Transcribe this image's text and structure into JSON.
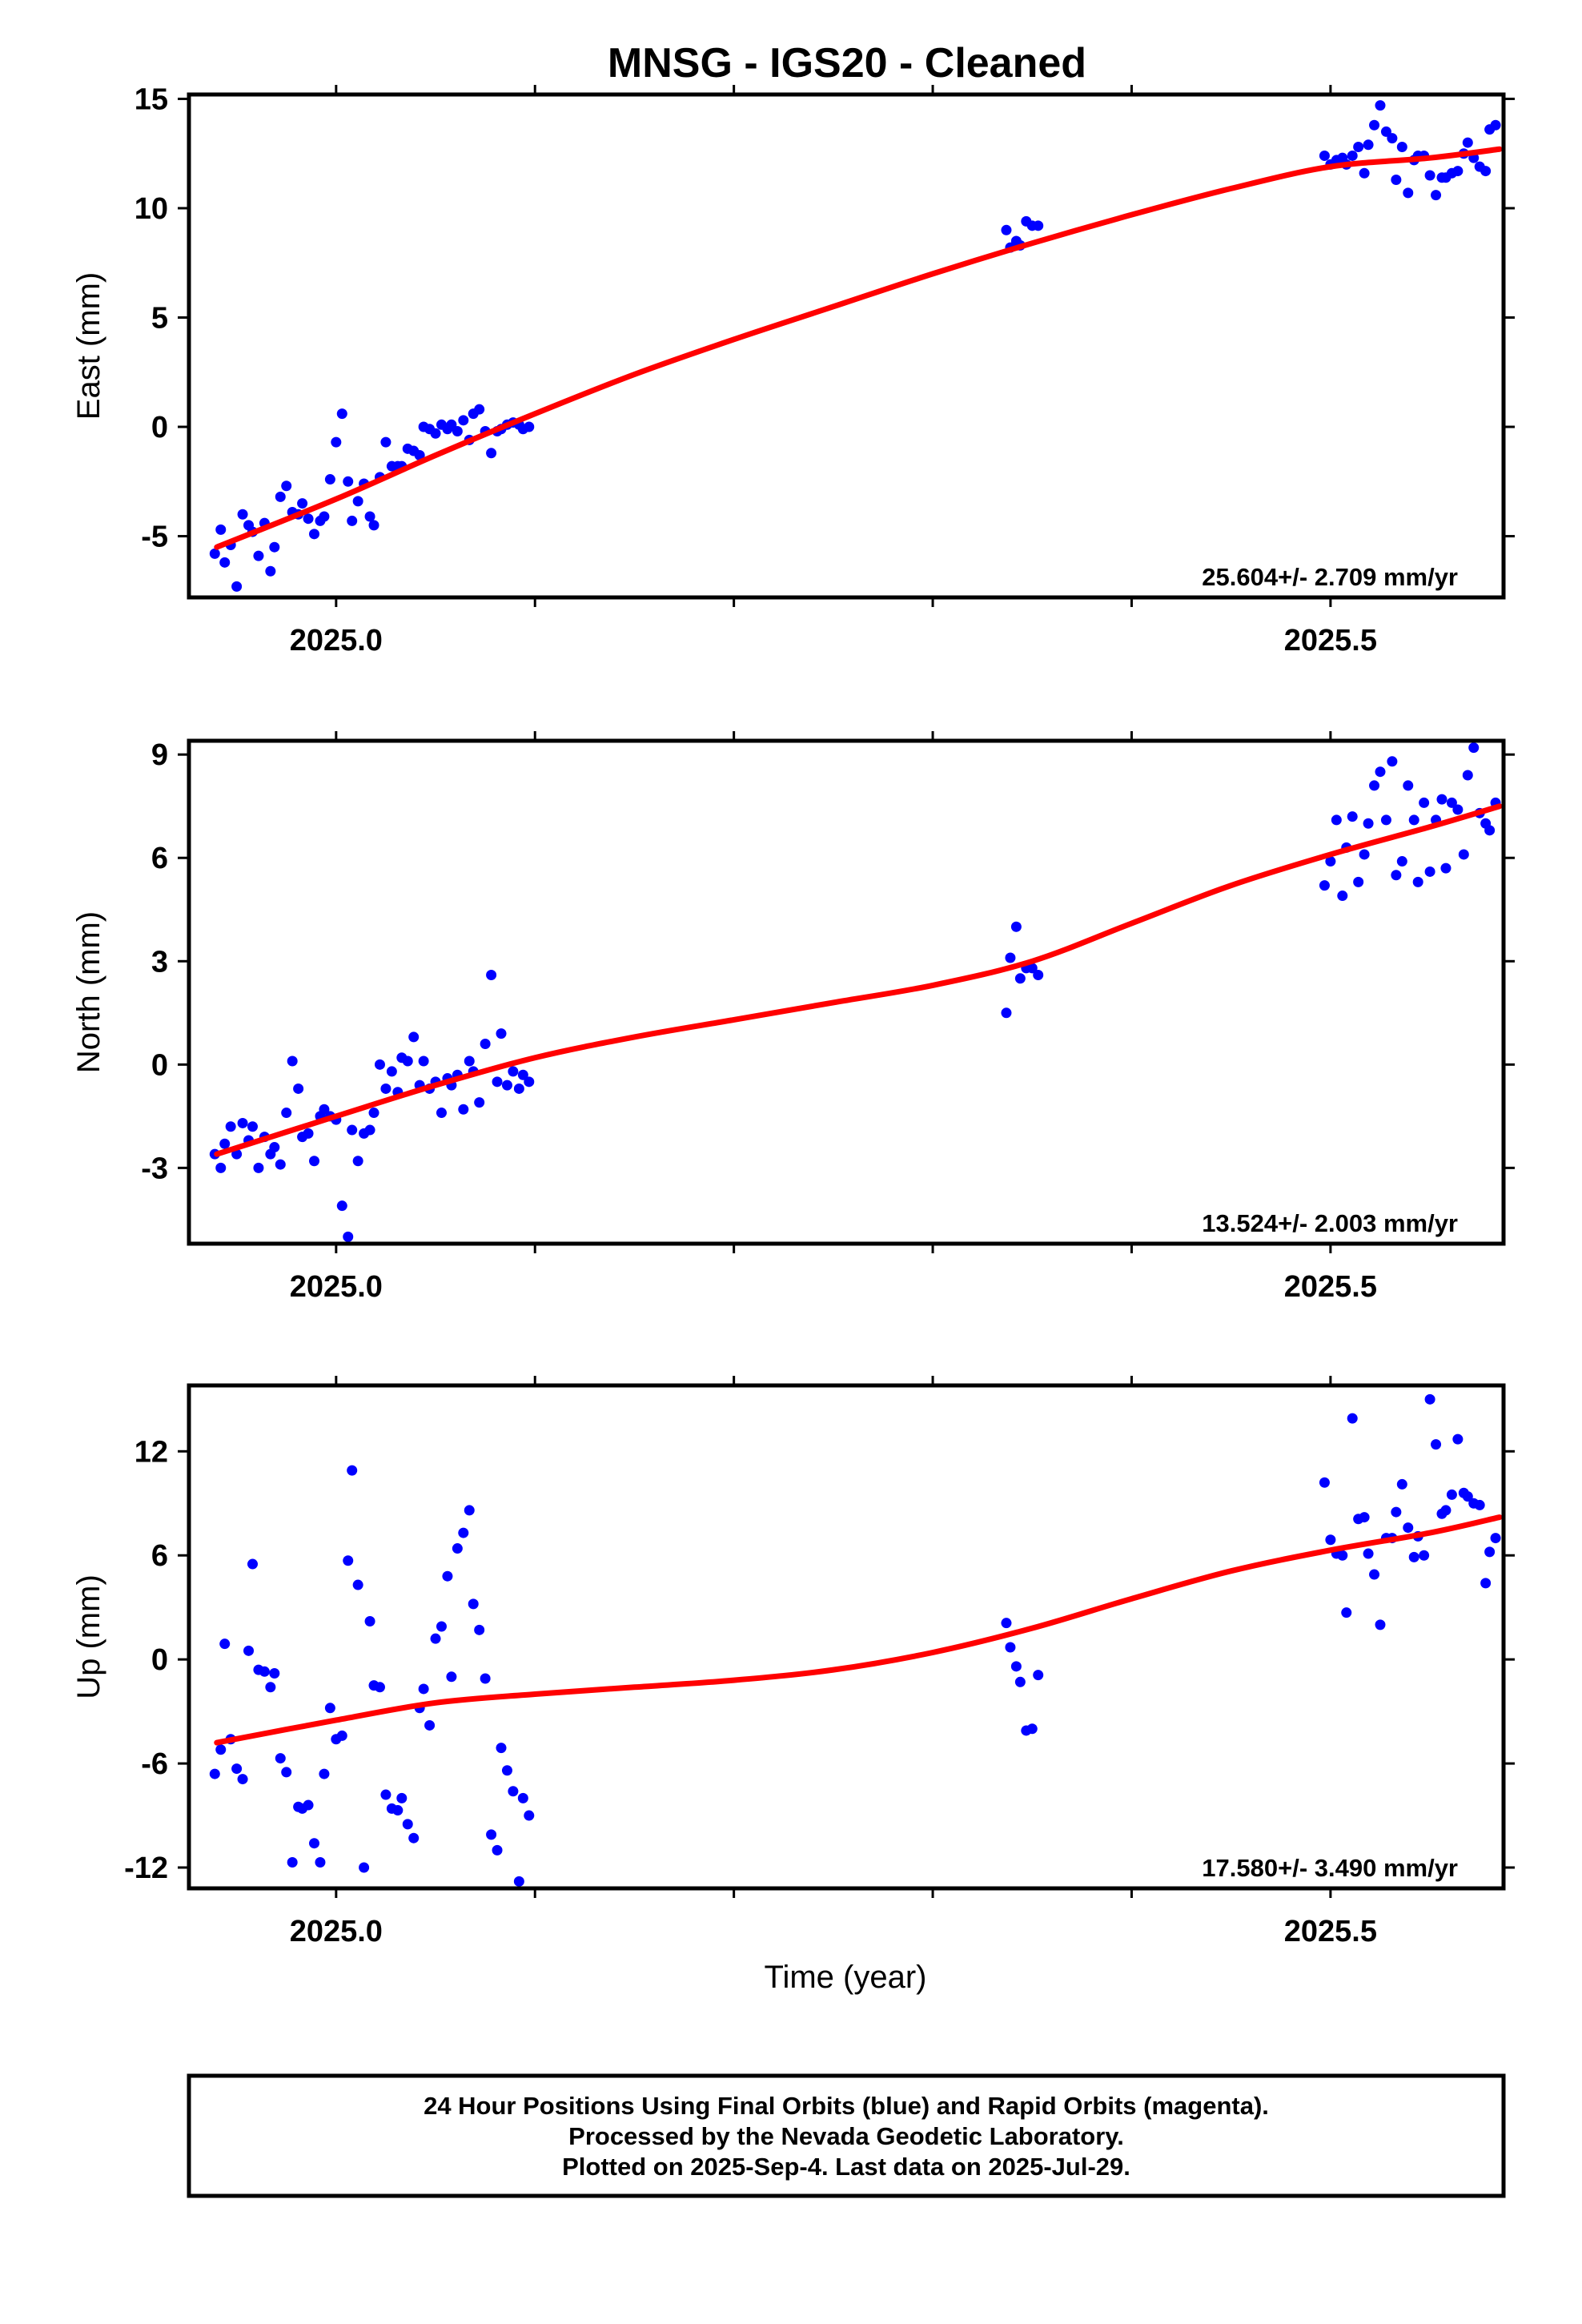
{
  "title": "MNSG  - IGS20 - Cleaned",
  "xlabel": "Time (year)",
  "x_tick_labels": [
    "2025.0",
    "2025.5"
  ],
  "footer_lines": [
    "24 Hour Positions Using Final Orbits (blue) and Rapid Orbits (magenta).",
    "Processed by the Nevada Geodetic Laboratory.",
    "Plotted on 2025-Sep-4. Last data on 2025-Jul-29."
  ],
  "colors": {
    "points": "#0000ff",
    "fit": "#ff0000",
    "axes": "#000000"
  },
  "chart_data": [
    {
      "type": "scatter",
      "ylabel": "East (mm)",
      "rate": "25.604+/- 2.709 mm/yr",
      "xlim": [
        2024.926,
        2025.587
      ],
      "ylim": [
        -7.8,
        15.2
      ],
      "yticks": [
        -5,
        0,
        5,
        10,
        15
      ],
      "xticks": [
        2025.0,
        2025.5
      ],
      "grid": false,
      "series": [
        {
          "x": [
            2024.939,
            2024.942,
            2024.944,
            2024.947,
            2024.95,
            2024.953,
            2024.956,
            2024.958,
            2024.961,
            2024.964,
            2024.967,
            2024.969,
            2024.972,
            2024.975,
            2024.978,
            2024.981,
            2024.983,
            2024.986,
            2024.989,
            2024.992,
            2024.994,
            2024.997,
            2025.0,
            2025.003,
            2025.006,
            2025.008,
            2025.011,
            2025.014,
            2025.017,
            2025.019,
            2025.022,
            2025.025,
            2025.028,
            2025.031,
            2025.033,
            2025.036,
            2025.039,
            2025.042,
            2025.044,
            2025.047,
            2025.05,
            2025.053,
            2025.056,
            2025.058,
            2025.061,
            2025.064,
            2025.067,
            2025.069,
            2025.072,
            2025.075,
            2025.078,
            2025.081,
            2025.083,
            2025.086,
            2025.089,
            2025.092,
            2025.094,
            2025.097,
            2025.337,
            2025.339,
            2025.342,
            2025.344,
            2025.347,
            2025.35,
            2025.353,
            2025.497,
            2025.5,
            2025.503,
            2025.506,
            2025.508,
            2025.511,
            2025.514,
            2025.517,
            2025.519,
            2025.522,
            2025.525,
            2025.528,
            2025.531,
            2025.533,
            2025.536,
            2025.539,
            2025.542,
            2025.544,
            2025.547,
            2025.55,
            2025.553,
            2025.556,
            2025.558,
            2025.561,
            2025.564,
            2025.567,
            2025.569,
            2025.572,
            2025.575,
            2025.578,
            2025.58,
            2025.583
          ],
          "y": [
            -5.8,
            -4.7,
            -6.2,
            -5.4,
            -7.3,
            -4.0,
            -4.5,
            -4.8,
            -5.9,
            -4.4,
            -6.6,
            -5.5,
            -3.2,
            -2.7,
            -3.9,
            -4.0,
            -3.5,
            -4.2,
            -4.9,
            -4.3,
            -4.1,
            -2.4,
            -0.7,
            0.6,
            -2.5,
            -4.3,
            -3.4,
            -2.6,
            -4.1,
            -4.5,
            -2.3,
            -0.7,
            -1.8,
            -1.8,
            -1.8,
            -1.0,
            -1.1,
            -1.3,
            0.0,
            -0.1,
            -0.3,
            0.1,
            -0.1,
            0.1,
            -0.2,
            0.3,
            -0.6,
            0.6,
            0.8,
            -0.2,
            -1.2,
            -0.2,
            -0.1,
            0.1,
            0.2,
            0.1,
            -0.1,
            0.0,
            9.0,
            8.2,
            8.5,
            8.3,
            9.4,
            9.2,
            9.2,
            12.4,
            12.0,
            12.2,
            12.3,
            12.0,
            12.4,
            12.8,
            11.6,
            12.9,
            13.8,
            14.7,
            13.5,
            13.2,
            11.3,
            12.8,
            10.7,
            12.2,
            12.4,
            12.4,
            11.5,
            10.6,
            11.4,
            11.4,
            11.6,
            11.7,
            12.5,
            13.0,
            12.3,
            11.9,
            11.7,
            13.6,
            13.8
          ],
          "fit_x": [
            2024.94,
            2025.0,
            2025.05,
            2025.1,
            2025.15,
            2025.2,
            2025.25,
            2025.3,
            2025.35,
            2025.4,
            2025.45,
            2025.5,
            2025.55,
            2025.585
          ],
          "fit_y": [
            -5.5,
            -3.3,
            -1.3,
            0.6,
            2.4,
            4.0,
            5.5,
            7.0,
            8.4,
            9.7,
            10.9,
            11.9,
            12.3,
            12.7
          ]
        }
      ]
    },
    {
      "type": "scatter",
      "ylabel": "North (mm)",
      "rate": "13.524+/- 2.003 mm/yr",
      "xlim": [
        2024.926,
        2025.587
      ],
      "ylim": [
        -5.2,
        9.4
      ],
      "yticks": [
        -3,
        0,
        3,
        6,
        9
      ],
      "xticks": [
        2025.0,
        2025.5
      ],
      "grid": false,
      "series": [
        {
          "x": [
            2024.939,
            2024.942,
            2024.944,
            2024.947,
            2024.95,
            2024.953,
            2024.956,
            2024.958,
            2024.961,
            2024.964,
            2024.967,
            2024.969,
            2024.972,
            2024.975,
            2024.978,
            2024.981,
            2024.983,
            2024.986,
            2024.989,
            2024.992,
            2024.994,
            2024.997,
            2025.0,
            2025.003,
            2025.006,
            2025.008,
            2025.011,
            2025.014,
            2025.017,
            2025.019,
            2025.022,
            2025.025,
            2025.028,
            2025.031,
            2025.033,
            2025.036,
            2025.039,
            2025.042,
            2025.044,
            2025.047,
            2025.05,
            2025.053,
            2025.056,
            2025.058,
            2025.061,
            2025.064,
            2025.067,
            2025.069,
            2025.072,
            2025.075,
            2025.078,
            2025.081,
            2025.083,
            2025.086,
            2025.089,
            2025.092,
            2025.094,
            2025.097,
            2025.337,
            2025.339,
            2025.342,
            2025.344,
            2025.347,
            2025.35,
            2025.353,
            2025.497,
            2025.5,
            2025.503,
            2025.506,
            2025.508,
            2025.511,
            2025.514,
            2025.517,
            2025.519,
            2025.522,
            2025.525,
            2025.528,
            2025.531,
            2025.533,
            2025.536,
            2025.539,
            2025.542,
            2025.544,
            2025.547,
            2025.55,
            2025.553,
            2025.556,
            2025.558,
            2025.561,
            2025.564,
            2025.567,
            2025.569,
            2025.572,
            2025.575,
            2025.578,
            2025.58,
            2025.583
          ],
          "y": [
            -2.6,
            -3.0,
            -2.3,
            -1.8,
            -2.6,
            -1.7,
            -2.2,
            -1.8,
            -3.0,
            -2.1,
            -2.6,
            -2.4,
            -2.9,
            -1.4,
            0.1,
            -0.7,
            -2.1,
            -2.0,
            -2.8,
            -1.5,
            -1.3,
            -1.5,
            -1.6,
            -4.1,
            -5.0,
            -1.9,
            -2.8,
            -2.0,
            -1.9,
            -1.4,
            0.0,
            -0.7,
            -0.2,
            -0.8,
            0.2,
            0.1,
            0.8,
            -0.6,
            0.1,
            -0.7,
            -0.5,
            -1.4,
            -0.4,
            -0.6,
            -0.3,
            -1.3,
            0.1,
            -0.2,
            -1.1,
            0.6,
            2.6,
            -0.5,
            0.9,
            -0.6,
            -0.2,
            -0.7,
            -0.3,
            -0.5,
            1.5,
            3.1,
            4.0,
            2.5,
            2.8,
            2.8,
            2.6,
            5.2,
            5.9,
            7.1,
            4.9,
            6.3,
            7.2,
            5.3,
            6.1,
            7.0,
            8.1,
            8.5,
            7.1,
            8.8,
            5.5,
            5.9,
            8.1,
            7.1,
            5.3,
            7.6,
            5.6,
            7.1,
            7.7,
            5.7,
            7.6,
            7.4,
            6.1,
            8.4,
            9.2,
            7.3,
            7.0,
            6.8,
            7.6
          ],
          "fit_x": [
            2024.94,
            2025.0,
            2025.05,
            2025.1,
            2025.15,
            2025.2,
            2025.25,
            2025.3,
            2025.35,
            2025.4,
            2025.45,
            2025.5,
            2025.55,
            2025.585
          ],
          "fit_y": [
            -2.6,
            -1.5,
            -0.6,
            0.2,
            0.8,
            1.3,
            1.8,
            2.3,
            3.0,
            4.1,
            5.2,
            6.1,
            6.9,
            7.5
          ]
        }
      ]
    },
    {
      "type": "scatter",
      "ylabel": "Up (mm)",
      "rate": "17.580+/- 3.490 mm/yr",
      "xlim": [
        2024.926,
        2025.587
      ],
      "ylim": [
        -13.2,
        15.8
      ],
      "yticks": [
        -12,
        -6,
        0,
        6,
        12
      ],
      "xticks": [
        2025.0,
        2025.5
      ],
      "grid": false,
      "series": [
        {
          "x": [
            2024.939,
            2024.942,
            2024.944,
            2024.947,
            2024.95,
            2024.953,
            2024.956,
            2024.958,
            2024.961,
            2024.964,
            2024.967,
            2024.969,
            2024.972,
            2024.975,
            2024.978,
            2024.981,
            2024.983,
            2024.986,
            2024.989,
            2024.992,
            2024.994,
            2024.997,
            2025.0,
            2025.003,
            2025.006,
            2025.008,
            2025.011,
            2025.014,
            2025.017,
            2025.019,
            2025.022,
            2025.025,
            2025.028,
            2025.031,
            2025.033,
            2025.036,
            2025.039,
            2025.042,
            2025.044,
            2025.047,
            2025.05,
            2025.053,
            2025.056,
            2025.058,
            2025.061,
            2025.064,
            2025.067,
            2025.069,
            2025.072,
            2025.075,
            2025.078,
            2025.081,
            2025.083,
            2025.086,
            2025.089,
            2025.092,
            2025.094,
            2025.097,
            2025.337,
            2025.339,
            2025.342,
            2025.344,
            2025.347,
            2025.35,
            2025.353,
            2025.497,
            2025.5,
            2025.503,
            2025.506,
            2025.508,
            2025.511,
            2025.514,
            2025.517,
            2025.519,
            2025.522,
            2025.525,
            2025.528,
            2025.531,
            2025.533,
            2025.536,
            2025.539,
            2025.542,
            2025.544,
            2025.547,
            2025.55,
            2025.553,
            2025.556,
            2025.558,
            2025.561,
            2025.564,
            2025.567,
            2025.569,
            2025.572,
            2025.575,
            2025.578,
            2025.58,
            2025.583
          ],
          "y": [
            -6.6,
            -5.2,
            0.9,
            -4.6,
            -6.3,
            -6.9,
            0.5,
            5.5,
            -0.6,
            -0.7,
            -1.6,
            -0.8,
            -5.7,
            -6.5,
            -11.7,
            -8.5,
            -8.6,
            -8.4,
            -10.6,
            -11.7,
            -6.6,
            -2.8,
            -4.6,
            -4.4,
            5.7,
            10.9,
            4.3,
            -12.0,
            2.2,
            -1.5,
            -1.6,
            -7.8,
            -8.6,
            -8.7,
            -8.0,
            -9.5,
            -10.3,
            -2.8,
            -1.7,
            -3.8,
            1.2,
            1.9,
            4.8,
            -1.0,
            6.4,
            7.3,
            8.6,
            3.2,
            1.7,
            -1.1,
            -10.1,
            -11.0,
            -5.1,
            -6.4,
            -7.6,
            -12.8,
            -8.0,
            -9.0,
            2.1,
            0.7,
            -0.4,
            -1.3,
            -4.1,
            -4.0,
            -0.9,
            10.2,
            6.9,
            6.1,
            6.0,
            2.7,
            13.9,
            8.1,
            8.2,
            6.1,
            4.9,
            2.0,
            7.0,
            7.0,
            8.5,
            10.1,
            7.6,
            5.9,
            7.1,
            6.0,
            15.0,
            12.4,
            8.4,
            8.6,
            9.5,
            12.7,
            9.6,
            9.4,
            9.0,
            8.9,
            4.4,
            6.2,
            7.0
          ],
          "fit_x": [
            2024.94,
            2025.0,
            2025.05,
            2025.1,
            2025.15,
            2025.2,
            2025.25,
            2025.3,
            2025.35,
            2025.4,
            2025.45,
            2025.5,
            2025.55,
            2025.585
          ],
          "fit_y": [
            -4.8,
            -3.5,
            -2.5,
            -2.0,
            -1.6,
            -1.2,
            -0.6,
            0.4,
            1.8,
            3.5,
            5.1,
            6.3,
            7.3,
            8.2
          ]
        }
      ]
    }
  ]
}
